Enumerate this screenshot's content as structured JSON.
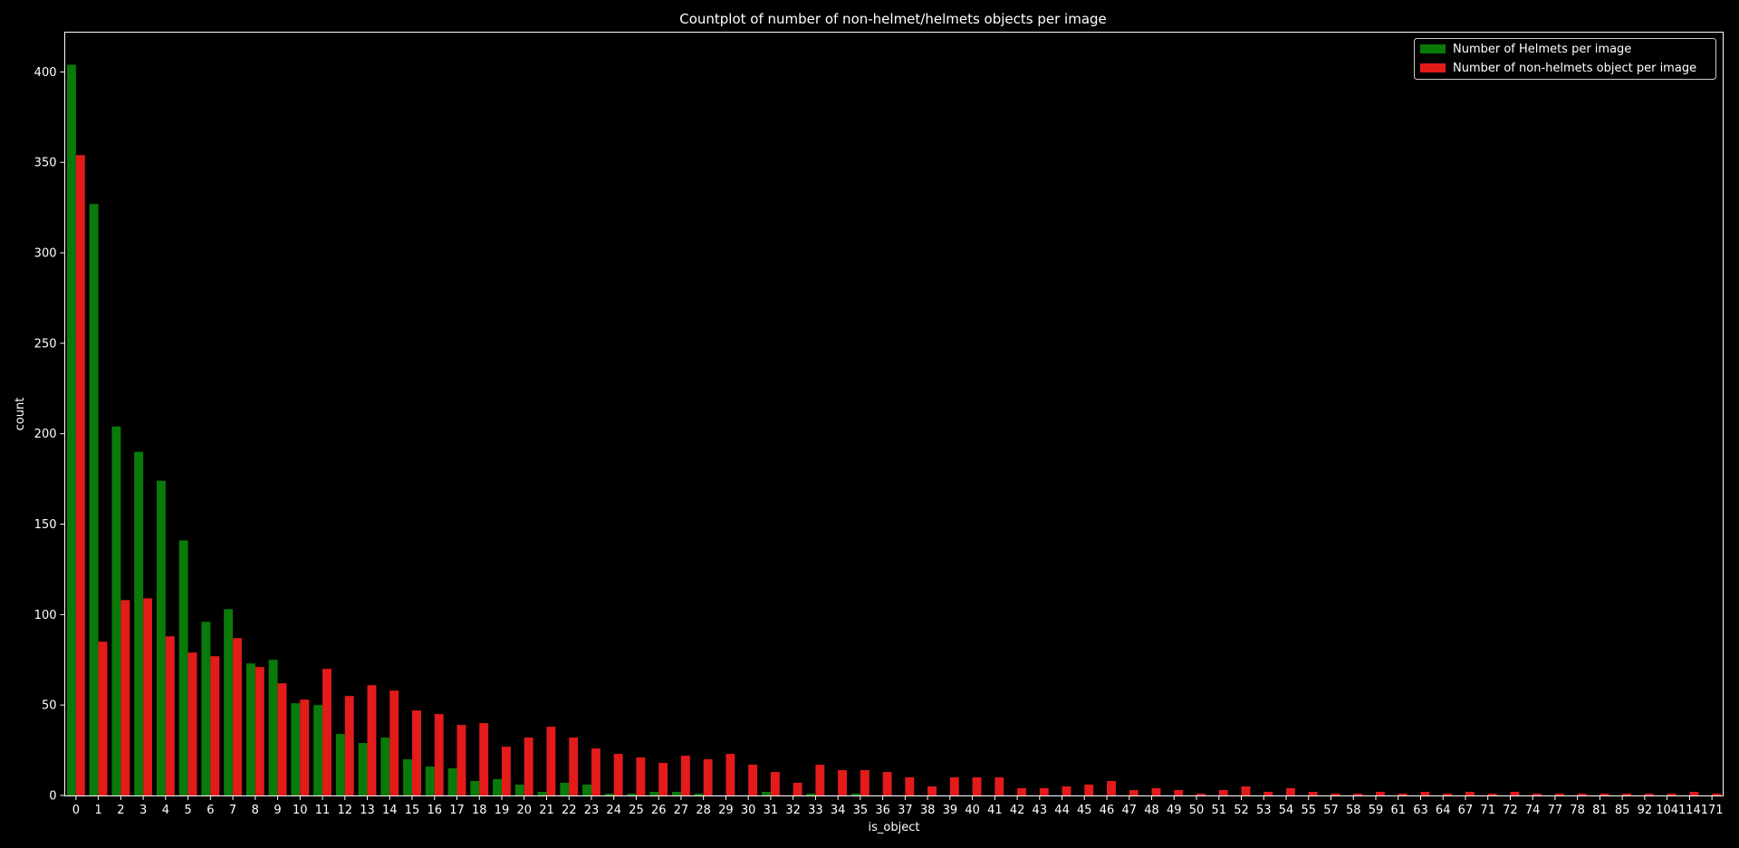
{
  "chart_data": {
    "type": "bar",
    "title": "Countplot of number of non-helmet/helmets objects per image",
    "xlabel": "is_object",
    "ylabel": "count",
    "ylim": [
      0,
      422
    ],
    "yticks": [
      0,
      50,
      100,
      150,
      200,
      250,
      300,
      350,
      400
    ],
    "grid": false,
    "legend_position": "top-right",
    "categories": [
      "0",
      "1",
      "2",
      "3",
      "4",
      "5",
      "6",
      "7",
      "8",
      "9",
      "10",
      "11",
      "12",
      "13",
      "14",
      "15",
      "16",
      "17",
      "18",
      "19",
      "20",
      "21",
      "22",
      "23",
      "24",
      "25",
      "26",
      "27",
      "28",
      "29",
      "30",
      "31",
      "32",
      "33",
      "34",
      "35",
      "36",
      "37",
      "38",
      "39",
      "40",
      "41",
      "42",
      "43",
      "44",
      "45",
      "46",
      "47",
      "48",
      "49",
      "50",
      "51",
      "52",
      "53",
      "54",
      "55",
      "57",
      "58",
      "59",
      "61",
      "63",
      "64",
      "67",
      "71",
      "72",
      "74",
      "77",
      "78",
      "81",
      "85",
      "92",
      "104",
      "114",
      "171"
    ],
    "series": [
      {
        "name": "Number of Helmets per image",
        "color": "#0a7a0a",
        "values": [
          404,
          327,
          204,
          190,
          174,
          141,
          96,
          103,
          73,
          75,
          51,
          50,
          34,
          29,
          32,
          20,
          16,
          15,
          8,
          9,
          6,
          2,
          7,
          6,
          1,
          1,
          2,
          2,
          1,
          0,
          0,
          2,
          0,
          1,
          0,
          1,
          0,
          0,
          0,
          0,
          0,
          0,
          0,
          0,
          0,
          0,
          0,
          0,
          0,
          0,
          0,
          0,
          0,
          0,
          0,
          0,
          0,
          0,
          0,
          0,
          0,
          0,
          0,
          0,
          0,
          0,
          0,
          0,
          0,
          0,
          0,
          0,
          0,
          0
        ]
      },
      {
        "name": "Number of non-helmets object per image",
        "color": "#e31b1b",
        "values": [
          354,
          85,
          108,
          109,
          88,
          79,
          77,
          87,
          71,
          62,
          53,
          70,
          55,
          61,
          58,
          47,
          45,
          39,
          40,
          27,
          32,
          38,
          32,
          26,
          23,
          21,
          18,
          22,
          20,
          23,
          17,
          13,
          7,
          17,
          14,
          14,
          13,
          10,
          5,
          10,
          10,
          10,
          4,
          4,
          5,
          6,
          8,
          3,
          4,
          3,
          1,
          3,
          5,
          2,
          4,
          2,
          1,
          1,
          2,
          1,
          2,
          1,
          2,
          1,
          2,
          1,
          1,
          1,
          1,
          1,
          1,
          1,
          2,
          1
        ]
      }
    ]
  }
}
